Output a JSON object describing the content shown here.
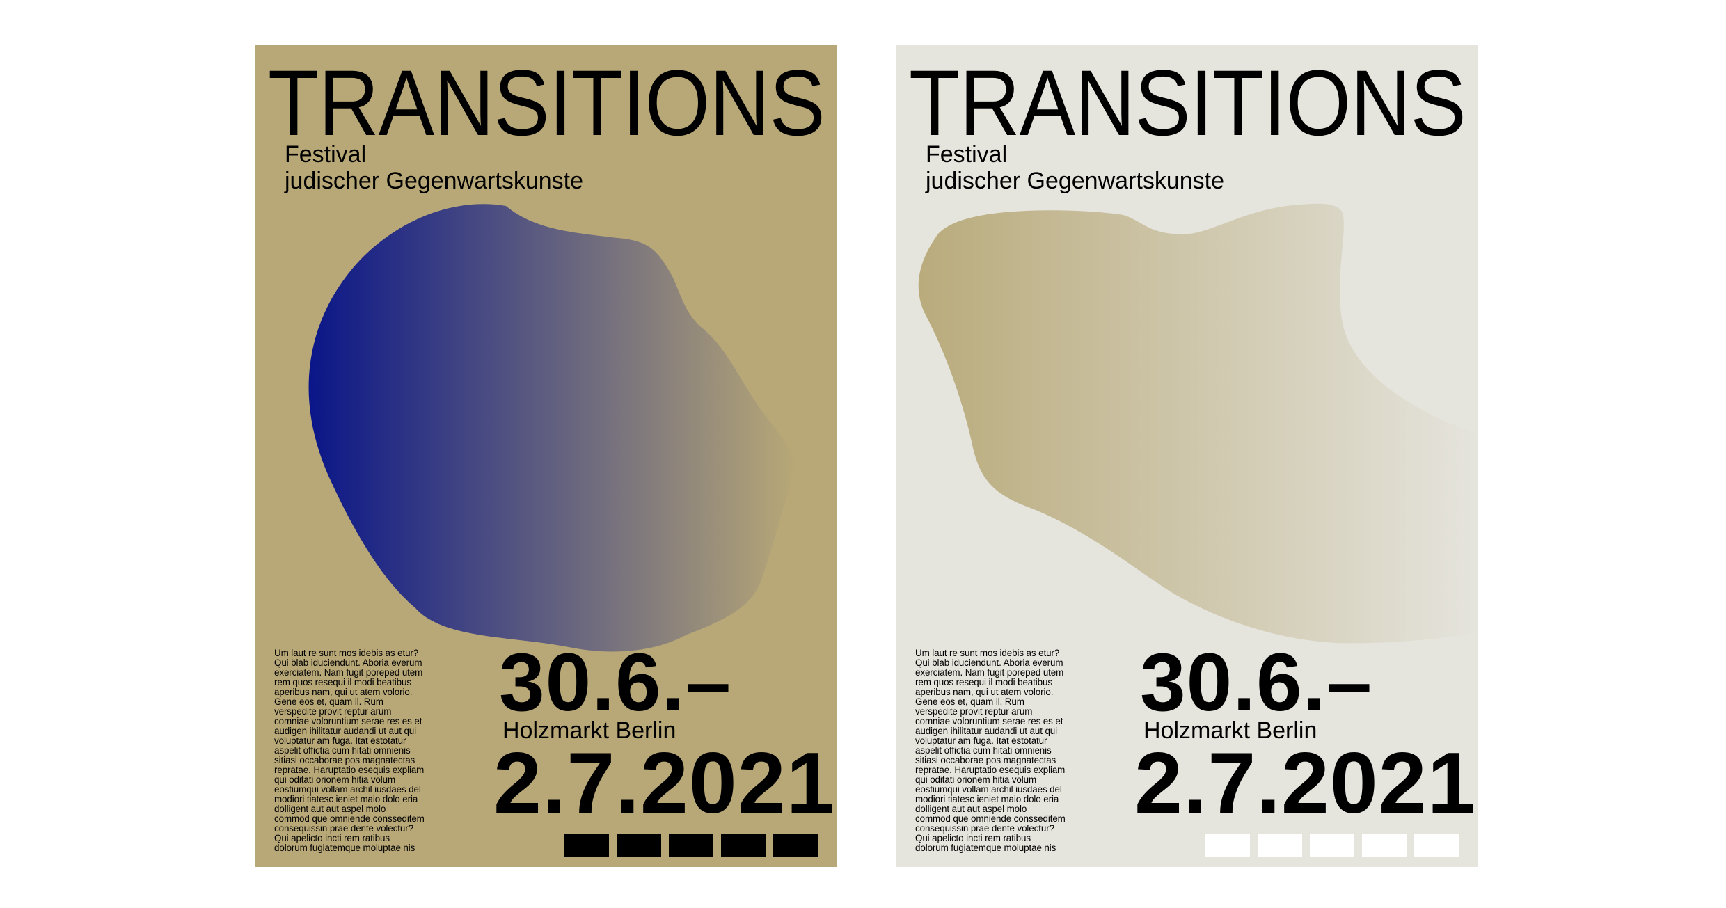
{
  "posters": [
    {
      "variant": "gold",
      "background": "#b8a877",
      "gradient_from": "#0a1688",
      "gradient_to": "#b8a877",
      "block_color": "#000000",
      "title": "TRANSITIONS",
      "subtitle_line1": "Festival",
      "subtitle_line2": "judischer Gegenwartskunste",
      "body_lines": [
        "Um laut re sunt mos idebis as etur?",
        "Qui blab iduciendunt. Aboria everum",
        "exerciatem. Nam fugit poreped utem",
        "rem quos resequi il modi beatibus",
        "aperibus nam, qui ut atem volorio.",
        "Gene eos et, quam il. Rum",
        "verspedite provit reptur arum",
        "comniae voloruntium serae res es et",
        "audigen ihilitatur audandi ut aut qui",
        "voluptatur am fuga. Itat estotatur",
        "aspelit offictia cum hitati omnienis",
        "sitiasi occaborae pos magnatectas",
        "repratae. Haruptatio esequis expliam",
        "qui oditati orionem hitia volum",
        "eostiumqui vollam archil iusdaes del",
        "modiori tiatesc ieniet maio dolo eria",
        "dolligent aut aut aspel molo",
        "commod que omniende consseditem",
        "consequissin prae dente volectur?",
        "Qui apelicto incti rem ratibus",
        "dolorum fugiatemque moluptae nis"
      ],
      "date_start": "30.6.–",
      "venue": "Holzmarkt Berlin",
      "date_end": "2.7.2021"
    },
    {
      "variant": "light",
      "background": "#e5e4dd",
      "gradient_from": "#b9ab7c",
      "gradient_to": "#e5e4dd",
      "block_color": "#ffffff",
      "title": "TRANSITIONS",
      "subtitle_line1": "Festival",
      "subtitle_line2": "judischer Gegenwartskunste",
      "body_lines": [
        "Um laut re sunt mos idebis as etur?",
        "Qui blab iduciendunt. Aboria everum",
        "exerciatem. Nam fugit poreped utem",
        "rem quos resequi il modi beatibus",
        "aperibus nam, qui ut atem volorio.",
        "Gene eos et, quam il. Rum",
        "verspedite provit reptur arum",
        "comniae voloruntium serae res es et",
        "audigen ihilitatur audandi ut aut qui",
        "voluptatur am fuga. Itat estotatur",
        "aspelit offictia cum hitati omnienis",
        "sitiasi occaborae pos magnatectas",
        "repratae. Haruptatio esequis expliam",
        "qui oditati orionem hitia volum",
        "eostiumqui vollam archil iusdaes del",
        "modiori tiatesc ieniet maio dolo eria",
        "dolligent aut aut aspel molo",
        "commod que omniende consseditem",
        "consequissin prae dente volectur?",
        "Qui apelicto incti rem ratibus",
        "dolorum fugiatemque moluptae nis"
      ],
      "date_start": "30.6.–",
      "venue": "Holzmarkt Berlin",
      "date_end": "2.7.2021"
    }
  ]
}
